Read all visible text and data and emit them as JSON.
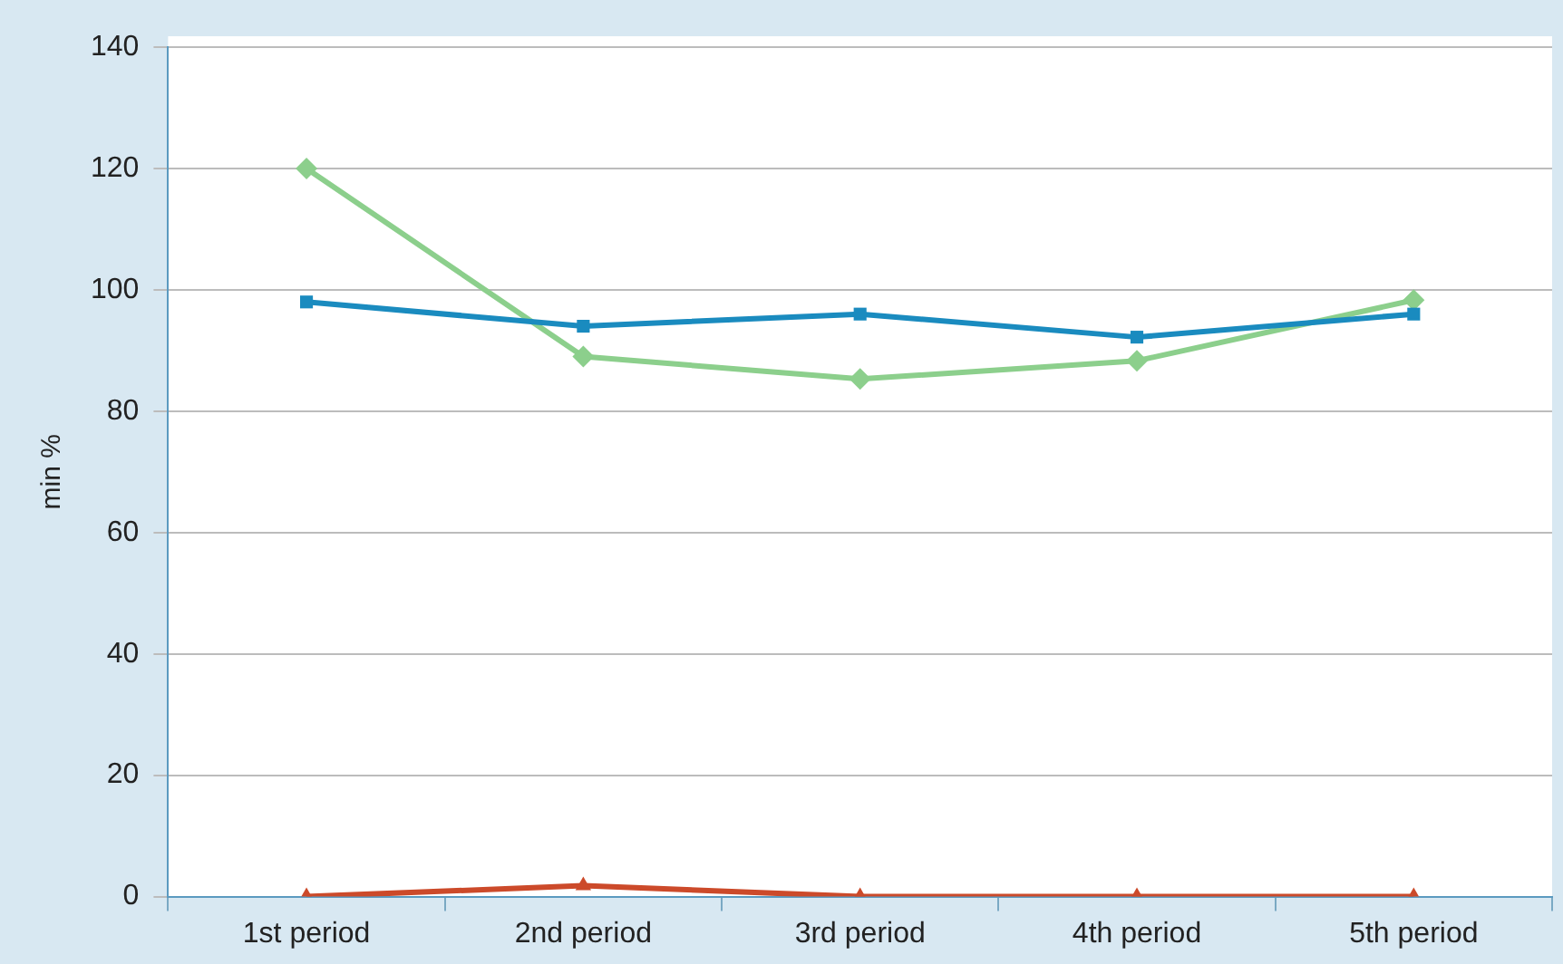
{
  "chart_data": {
    "type": "line",
    "ylabel": "min %",
    "categories": [
      "1st period",
      "2nd period",
      "3rd period",
      "4th period",
      "5th period"
    ],
    "series": [
      {
        "color": "#1a8bbf",
        "marker": "square",
        "values": [
          98,
          94,
          96,
          92.2,
          96
        ]
      },
      {
        "color": "#8ccf8c",
        "marker": "diamond",
        "values": [
          120,
          89,
          85.3,
          88.3,
          98.3
        ]
      },
      {
        "color": "#cc4a2a",
        "marker": "triangle",
        "values": [
          0,
          1.8,
          0,
          0,
          0
        ]
      }
    ],
    "ylim": [
      0,
      140
    ],
    "yticks": [
      0,
      20,
      40,
      60,
      80,
      100,
      120,
      140
    ],
    "grid": "y",
    "legend": false,
    "line_style": "solid"
  }
}
